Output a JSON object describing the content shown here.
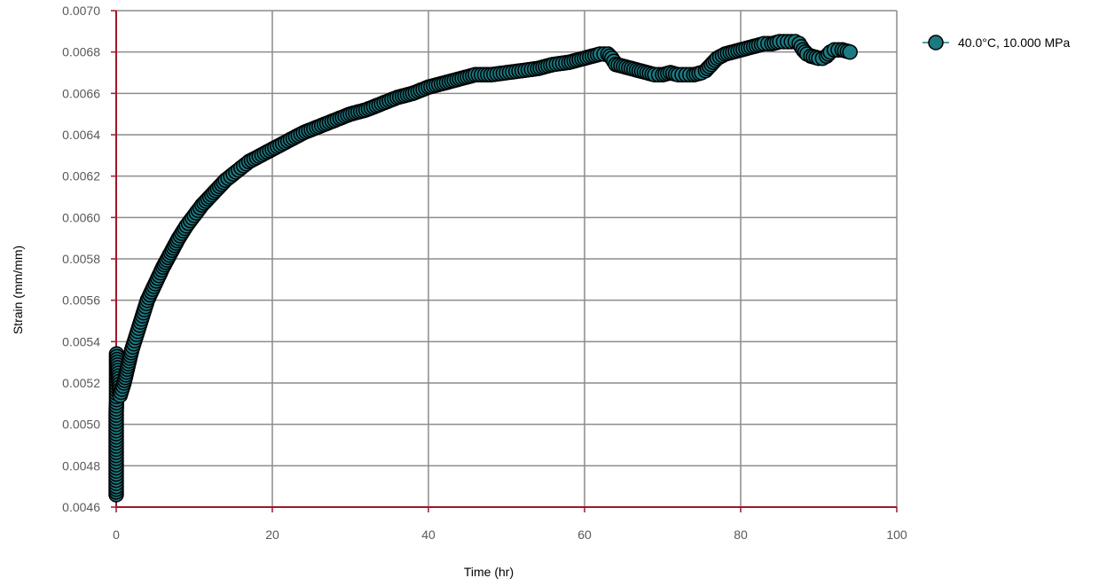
{
  "colors": {
    "axis": "#a0172b",
    "grid": "#8c8c8c",
    "marker_fill": "#1b7a82",
    "marker_stroke": "#000000",
    "tick_text": "#595959"
  },
  "legend": {
    "label": "40.0°C, 10.000 MPa",
    "placement": "right-top"
  },
  "chart_data": {
    "type": "scatter",
    "title": "",
    "xlabel": "Time (hr)",
    "ylabel": "Strain (mm/mm)",
    "xlim": [
      0,
      100
    ],
    "ylim": [
      0.0046,
      0.007
    ],
    "x_ticks": [
      0,
      20,
      40,
      60,
      80,
      100
    ],
    "x_tick_labels": [
      "0",
      "20",
      "40",
      "60",
      "80",
      "100"
    ],
    "y_ticks": [
      0.0046,
      0.0048,
      0.005,
      0.0052,
      0.0054,
      0.0056,
      0.0058,
      0.006,
      0.0062,
      0.0064,
      0.0066,
      0.0068,
      0.007
    ],
    "y_tick_labels": [
      "0.0046",
      "0.0048",
      "0.0050",
      "0.0052",
      "0.0054",
      "0.0056",
      "0.0058",
      "0.0060",
      "0.0062",
      "0.0064",
      "0.0066",
      "0.0068",
      "0.0070"
    ],
    "grid": true,
    "series": [
      {
        "name": "40.0°C, 10.000 MPa",
        "points": [
          [
            0.0,
            0.00466
          ],
          [
            0.0,
            0.0047
          ],
          [
            0.0,
            0.00476
          ],
          [
            0.0,
            0.00482
          ],
          [
            0.0,
            0.00488
          ],
          [
            0.0,
            0.00494
          ],
          [
            0.0,
            0.005
          ],
          [
            0.0,
            0.00506
          ],
          [
            0.05,
            0.00512
          ],
          [
            0.05,
            0.00518
          ],
          [
            0.05,
            0.00524
          ],
          [
            0.05,
            0.0053
          ],
          [
            0.05,
            0.00534
          ],
          [
            0.5,
            0.00514
          ],
          [
            1.0,
            0.0052
          ],
          [
            1.5,
            0.00528
          ],
          [
            2.0,
            0.00536
          ],
          [
            2.5,
            0.00542
          ],
          [
            3.0,
            0.00548
          ],
          [
            3.5,
            0.00554
          ],
          [
            4.0,
            0.0056
          ],
          [
            5.0,
            0.00568
          ],
          [
            6.0,
            0.00576
          ],
          [
            7.0,
            0.00583
          ],
          [
            8.0,
            0.0059
          ],
          [
            9.0,
            0.00596
          ],
          [
            10.0,
            0.00601
          ],
          [
            11.0,
            0.00606
          ],
          [
            12.0,
            0.0061
          ],
          [
            13.0,
            0.00614
          ],
          [
            14.0,
            0.00618
          ],
          [
            15.0,
            0.00621
          ],
          [
            16.0,
            0.00624
          ],
          [
            17.0,
            0.00627
          ],
          [
            18.0,
            0.00629
          ],
          [
            20.0,
            0.00633
          ],
          [
            22.0,
            0.00637
          ],
          [
            24.0,
            0.00641
          ],
          [
            26.0,
            0.00644
          ],
          [
            28.0,
            0.00647
          ],
          [
            30.0,
            0.0065
          ],
          [
            32.0,
            0.00652
          ],
          [
            34.0,
            0.00655
          ],
          [
            36.0,
            0.00658
          ],
          [
            38.0,
            0.0066
          ],
          [
            40.0,
            0.00663
          ],
          [
            42.0,
            0.00665
          ],
          [
            44.0,
            0.00667
          ],
          [
            46.0,
            0.00669
          ],
          [
            48.0,
            0.00669
          ],
          [
            50.0,
            0.0067
          ],
          [
            52.0,
            0.00671
          ],
          [
            54.0,
            0.00672
          ],
          [
            56.0,
            0.00674
          ],
          [
            58.0,
            0.00675
          ],
          [
            60.0,
            0.00677
          ],
          [
            61.0,
            0.00678
          ],
          [
            62.0,
            0.00679
          ],
          [
            63.0,
            0.00679
          ],
          [
            63.5,
            0.00677
          ],
          [
            64.0,
            0.00674
          ],
          [
            65.0,
            0.00673
          ],
          [
            66.0,
            0.00672
          ],
          [
            67.0,
            0.00671
          ],
          [
            68.0,
            0.0067
          ],
          [
            69.0,
            0.00669
          ],
          [
            70.0,
            0.00669
          ],
          [
            71.0,
            0.0067
          ],
          [
            72.0,
            0.00669
          ],
          [
            73.0,
            0.00669
          ],
          [
            74.0,
            0.00669
          ],
          [
            75.0,
            0.0067
          ],
          [
            75.5,
            0.00671
          ],
          [
            76.0,
            0.00673
          ],
          [
            76.5,
            0.00675
          ],
          [
            77.0,
            0.00677
          ],
          [
            78.0,
            0.00679
          ],
          [
            79.0,
            0.0068
          ],
          [
            80.0,
            0.00681
          ],
          [
            81.0,
            0.00682
          ],
          [
            82.0,
            0.00683
          ],
          [
            83.0,
            0.00684
          ],
          [
            84.0,
            0.00684
          ],
          [
            85.0,
            0.00685
          ],
          [
            86.0,
            0.00685
          ],
          [
            87.0,
            0.00685
          ],
          [
            87.5,
            0.00684
          ],
          [
            88.0,
            0.00681
          ],
          [
            88.5,
            0.00679
          ],
          [
            89.0,
            0.00678
          ],
          [
            90.0,
            0.00677
          ],
          [
            90.5,
            0.00677
          ],
          [
            91.0,
            0.00678
          ],
          [
            91.5,
            0.0068
          ],
          [
            92.0,
            0.00681
          ],
          [
            93.0,
            0.00681
          ],
          [
            94.0,
            0.0068
          ]
        ]
      }
    ]
  }
}
